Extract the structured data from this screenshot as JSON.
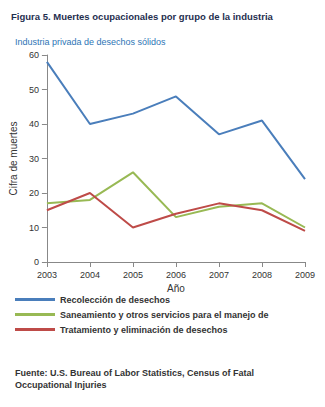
{
  "chart_data": {
    "type": "line",
    "title": "Figura 5. Muertes ocupacionales por grupo de la industria",
    "subtitle": "Industria privada de desechos sólidos",
    "x_label": "Año",
    "y_label": "Cifra de muertes",
    "annotations": [
      "Fuente: U.S. Bureau of Labor Statistics, Census of Fatal Occupational Injuries"
    ],
    "categories": [
      "2003",
      "2004",
      "2005",
      "2006",
      "2007",
      "2008",
      "2009"
    ],
    "series": [
      {
        "name": "Recolección de desechos",
        "color": "#4a7ebb",
        "values": [
          58,
          40,
          43,
          48,
          37,
          41,
          24
        ]
      },
      {
        "name": "Saneamiento y otros servicios para el manejo de",
        "color": "#98b954",
        "values": [
          17,
          18,
          26,
          13,
          16,
          17,
          10
        ]
      },
      {
        "name": "Tratamiento y eliminación de desechos",
        "color": "#be4b48",
        "values": [
          15,
          20,
          10,
          14,
          17,
          15,
          9
        ]
      }
    ],
    "ylim": [
      0,
      60
    ],
    "yticks": [
      0,
      10,
      20,
      30,
      40,
      50,
      60
    ],
    "grid": false,
    "legend": "bottom"
  }
}
